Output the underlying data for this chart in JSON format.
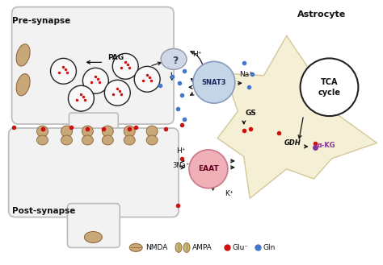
{
  "bg_color": "#ffffff",
  "astrocyte_color": "#f5f0d5",
  "astrocyte_edge": "#d4c898",
  "presynapse_color": "#f2f2f2",
  "postsynapse_color": "#f2f2f2",
  "synapse_outline": "#bbbbbb",
  "synapse_fill": "#f2f2f2",
  "snat3_color": "#c5d5e8",
  "eaat_color": "#f0b0b8",
  "tca_color": "#ffffff",
  "tca_edge": "#222222",
  "red_dot_color": "#cc1111",
  "blue_dot_color": "#4477cc",
  "purple_dot_color": "#883399",
  "text_presynapse": "Pre-synapse",
  "text_postsynapse": "Post-synapse",
  "text_astrocyte": "Astrocyte",
  "text_pag": "PAG",
  "text_snat3": "SNAT3",
  "text_eaat": "EAAT",
  "text_tca": "TCA\ncycle",
  "text_gs": "GS",
  "text_gdh": "GDH",
  "text_akg": "α-KG",
  "text_hplus1": "H⁺",
  "text_hplus2": "H⁺",
  "text_naplus": "Na⁺",
  "text_3naplus": "3Na⁺",
  "text_kplus": "K⁺",
  "legend_nmda": "NMDA",
  "legend_ampa": "AMPA",
  "legend_glu": "Glu⁻",
  "legend_gln": "Gln",
  "receptor_color": "#c8a878",
  "receptor_edge": "#8b6030",
  "vesicle_edge": "#222222",
  "question_color": "#d0d8e8",
  "question_edge": "#9099aa"
}
